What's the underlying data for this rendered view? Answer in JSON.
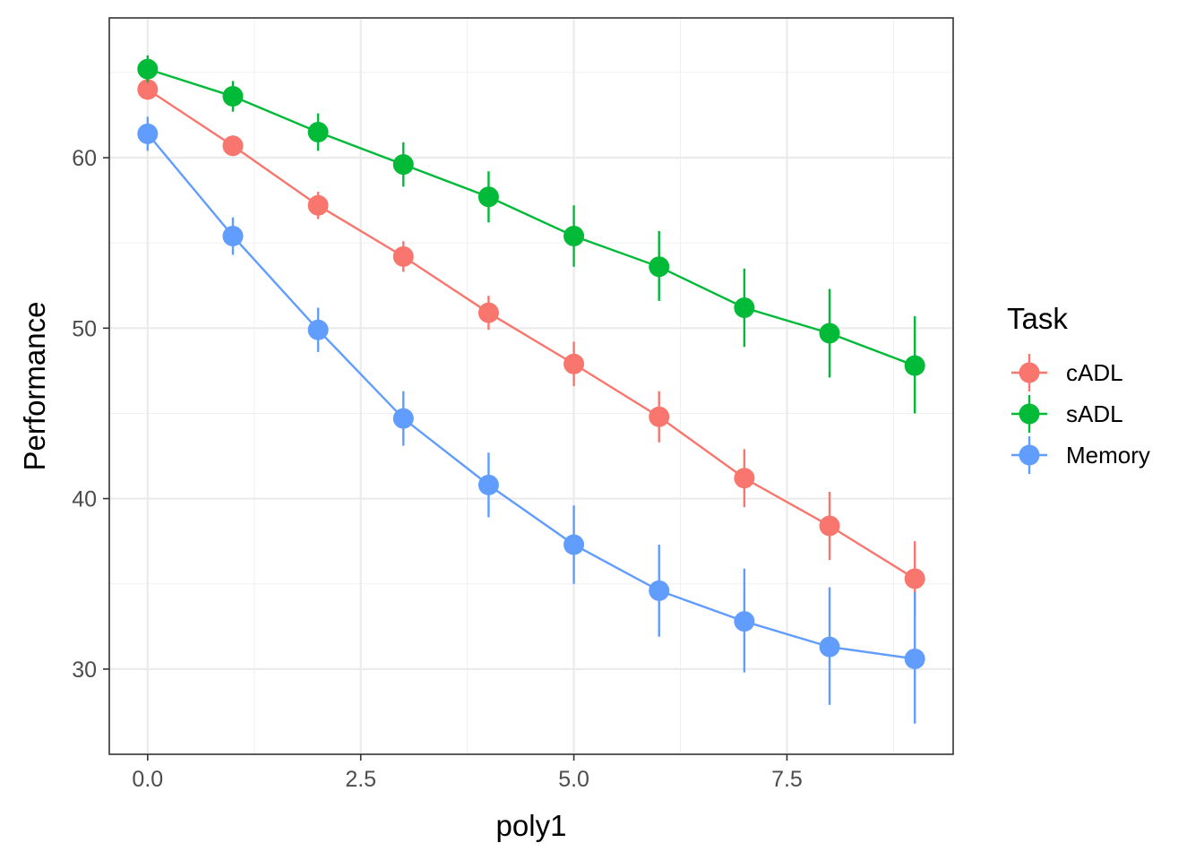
{
  "chart_data": {
    "type": "line",
    "title": "",
    "xlabel": "poly1",
    "ylabel": "Performance",
    "xlim": [
      -0.45,
      9.45
    ],
    "ylim": [
      25.0,
      68.2
    ],
    "x_ticks": [
      0,
      2.5,
      5,
      7.5
    ],
    "x_tick_labels": [
      "0.0",
      "2.5",
      "5.0",
      "7.5"
    ],
    "y_ticks": [
      30,
      40,
      50,
      60
    ],
    "y_tick_labels": [
      "30",
      "40",
      "50",
      "60"
    ],
    "grid": true,
    "legend": {
      "title": "Task",
      "position": "right"
    },
    "x": [
      0,
      1,
      2,
      3,
      4,
      5,
      6,
      7,
      8,
      9
    ],
    "series": [
      {
        "name": "cADL",
        "color": "#F8766D",
        "values": [
          64.0,
          60.7,
          57.2,
          54.2,
          50.9,
          47.9,
          44.8,
          41.2,
          38.4,
          35.3
        ],
        "err_low": [
          63.4,
          60.1,
          56.4,
          53.3,
          49.9,
          46.6,
          43.3,
          39.5,
          36.4,
          33.1
        ],
        "err_high": [
          64.6,
          61.3,
          58.0,
          55.1,
          51.9,
          49.2,
          46.3,
          42.9,
          40.4,
          37.5
        ]
      },
      {
        "name": "sADL",
        "color": "#00BA38",
        "values": [
          65.2,
          63.6,
          61.5,
          59.6,
          57.7,
          55.4,
          53.6,
          51.2,
          49.7,
          47.8
        ],
        "err_low": [
          64.4,
          62.7,
          60.4,
          58.3,
          56.2,
          53.6,
          51.6,
          48.9,
          47.1,
          45.0
        ],
        "err_high": [
          66.0,
          64.5,
          62.6,
          60.9,
          59.2,
          57.2,
          55.7,
          53.5,
          52.3,
          50.7
        ]
      },
      {
        "name": "Memory",
        "color": "#619CFF",
        "values": [
          61.4,
          55.4,
          49.9,
          44.7,
          40.8,
          37.3,
          34.6,
          32.8,
          31.3,
          30.6
        ],
        "err_low": [
          60.4,
          54.3,
          48.6,
          43.1,
          38.9,
          35.0,
          31.9,
          29.8,
          27.9,
          26.8
        ],
        "err_high": [
          62.4,
          56.5,
          51.2,
          46.3,
          42.7,
          39.6,
          37.3,
          35.9,
          34.8,
          34.5
        ]
      }
    ]
  }
}
